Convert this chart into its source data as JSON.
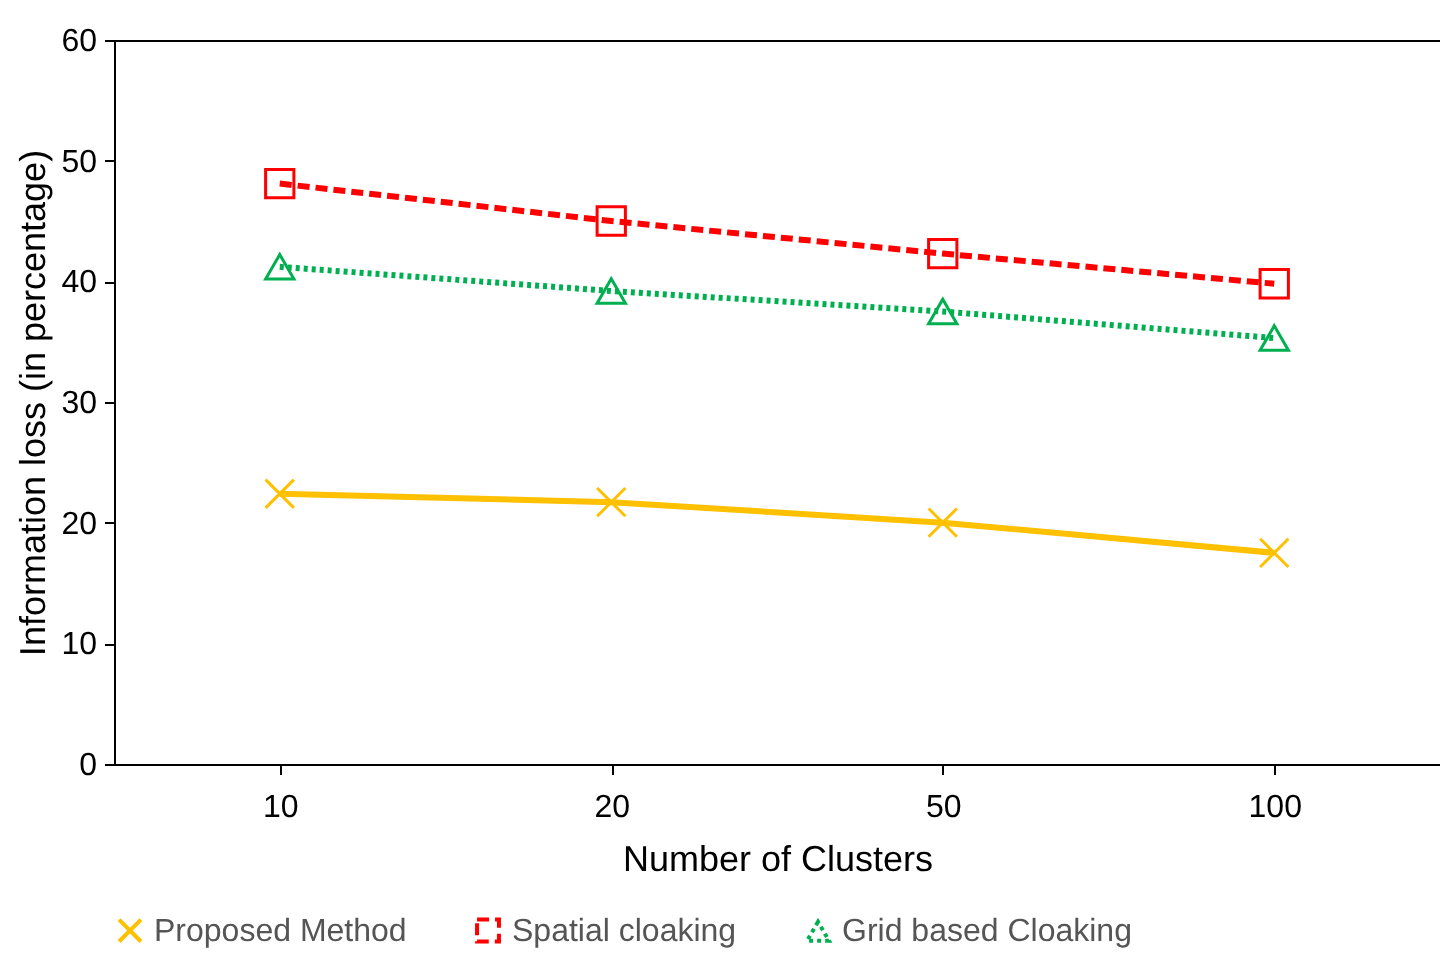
{
  "chart_data": {
    "type": "line",
    "xlabel": "Number of Clusters",
    "ylabel": "Information loss (in percentage)",
    "categories": [
      "10",
      "20",
      "50",
      "100"
    ],
    "ylim": [
      0,
      60
    ],
    "yticks": [
      0,
      10,
      20,
      30,
      40,
      50,
      60
    ],
    "grid": false,
    "legend": "bottom",
    "series": [
      {
        "name": "Proposed Method",
        "color": "#ffc000",
        "marker": "cross",
        "line_style": "solid",
        "values": [
          22.4,
          21.7,
          20.0,
          17.5
        ]
      },
      {
        "name": "Spatial cloaking",
        "color": "#ff0000",
        "marker": "square",
        "line_style": "dashed",
        "values": [
          48.1,
          45.0,
          42.3,
          39.8
        ]
      },
      {
        "name": "Grid based Cloaking",
        "color": "#00b050",
        "marker": "triangle",
        "line_style": "dotted",
        "values": [
          41.2,
          39.2,
          37.5,
          35.3
        ]
      }
    ]
  }
}
